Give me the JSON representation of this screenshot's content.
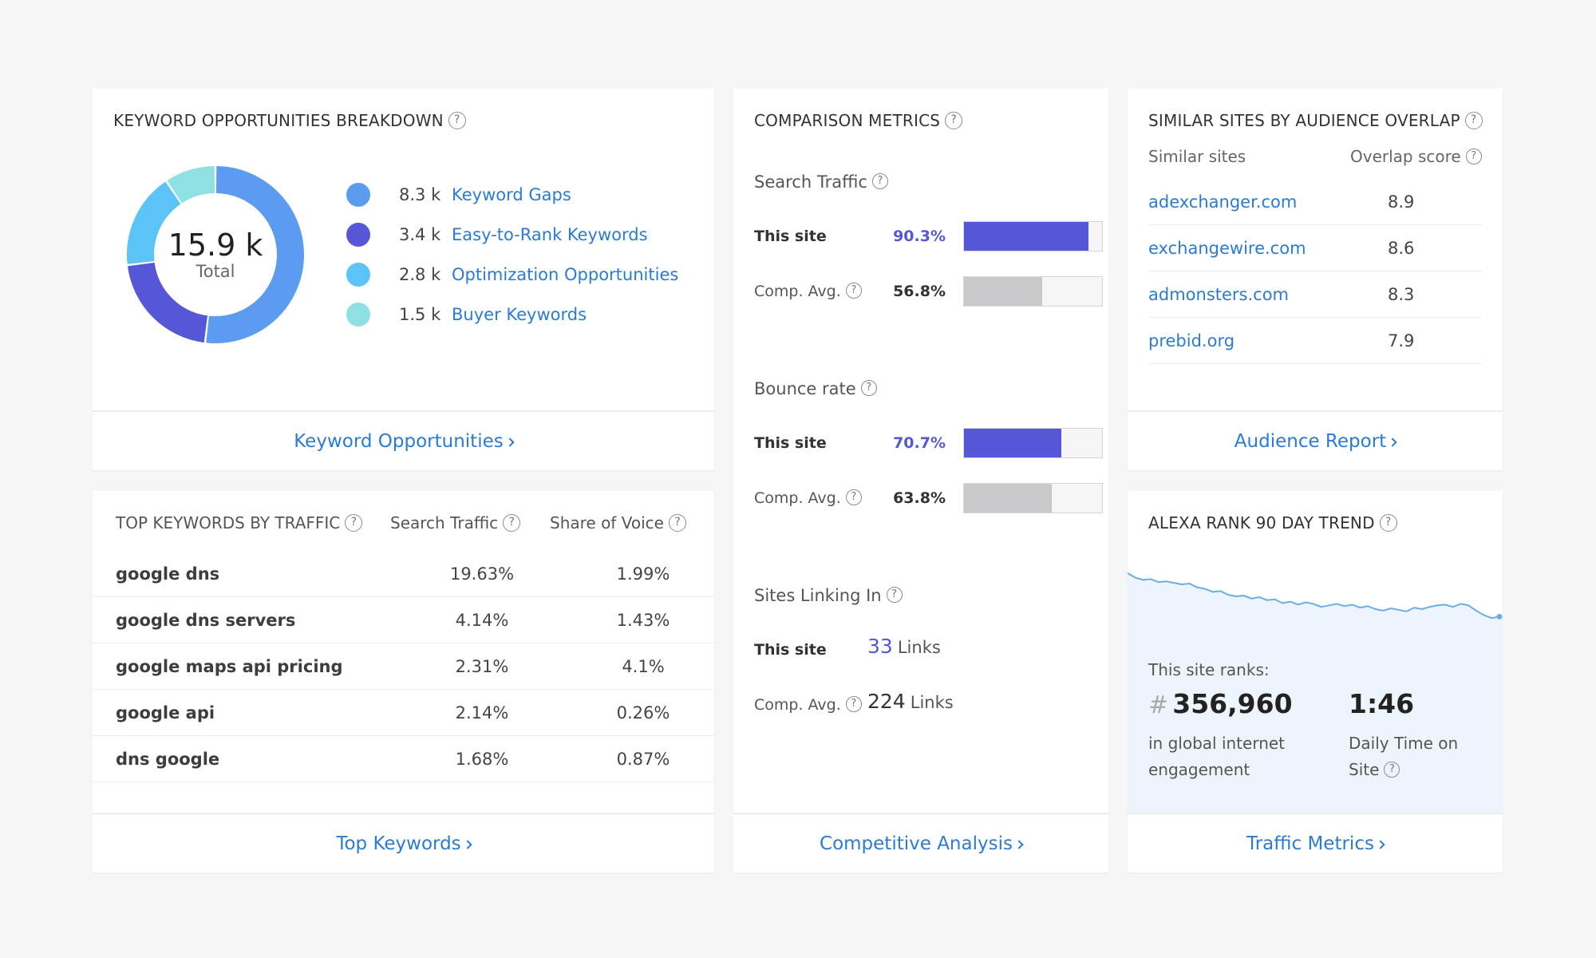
{
  "keyword_breakdown": {
    "title": "KEYWORD OPPORTUNITIES BREAKDOWN",
    "total_value": "15.9 k",
    "total_label": "Total",
    "items": [
      {
        "value": "8.3 k",
        "label": "Keyword Gaps",
        "color": "#5b9bf0",
        "amount": 8.3
      },
      {
        "value": "3.4 k",
        "label": "Easy-to-Rank Keywords",
        "color": "#5557d6",
        "amount": 3.4
      },
      {
        "value": "2.8 k",
        "label": "Optimization Opportunities",
        "color": "#5bc3f5",
        "amount": 2.8
      },
      {
        "value": "1.5 k",
        "label": "Buyer Keywords",
        "color": "#8ee0e2",
        "amount": 1.5
      }
    ],
    "footer_link": "Keyword Opportunities"
  },
  "top_keywords": {
    "title": "TOP KEYWORDS BY TRAFFIC",
    "col_search_traffic": "Search Traffic",
    "col_share_of_voice": "Share of Voice",
    "rows": [
      {
        "keyword": "google dns",
        "search_traffic": "19.63%",
        "share_of_voice": "1.99%"
      },
      {
        "keyword": "google dns servers",
        "search_traffic": "4.14%",
        "share_of_voice": "1.43%"
      },
      {
        "keyword": "google maps api pricing",
        "search_traffic": "2.31%",
        "share_of_voice": "4.1%"
      },
      {
        "keyword": "google api",
        "search_traffic": "2.14%",
        "share_of_voice": "0.26%"
      },
      {
        "keyword": "dns google",
        "search_traffic": "1.68%",
        "share_of_voice": "0.87%"
      }
    ],
    "footer_link": "Top Keywords"
  },
  "comparison_metrics": {
    "title": "COMPARISON METRICS",
    "search_traffic": {
      "label": "Search Traffic",
      "this_site_label": "This site",
      "this_site_value": "90.3%",
      "this_site_fraction": 0.903,
      "comp_label": "Comp. Avg.",
      "comp_value": "56.8%",
      "comp_fraction": 0.568
    },
    "bounce_rate": {
      "label": "Bounce rate",
      "this_site_label": "This site",
      "this_site_value": "70.7%",
      "this_site_fraction": 0.707,
      "comp_label": "Comp. Avg.",
      "comp_value": "63.8%",
      "comp_fraction": 0.638
    },
    "sites_linking_in": {
      "label": "Sites Linking In",
      "this_site_label": "This site",
      "this_site_value": "33",
      "comp_label": "Comp. Avg.",
      "comp_value": "224",
      "unit": "Links"
    },
    "colors": {
      "this_site": "#5557d6",
      "comp": "#c9c9cc",
      "this_site_text": "#5557d6"
    },
    "footer_link": "Competitive Analysis"
  },
  "similar_sites": {
    "title": "SIMILAR SITES BY AUDIENCE OVERLAP",
    "col_sites": "Similar sites",
    "col_score": "Overlap score",
    "rows": [
      {
        "site": "adexchanger.com",
        "score": "8.9"
      },
      {
        "site": "exchangewire.com",
        "score": "8.6"
      },
      {
        "site": "admonsters.com",
        "score": "8.3"
      },
      {
        "site": "prebid.org",
        "score": "7.9"
      }
    ],
    "footer_link": "Audience Report"
  },
  "alexa_rank": {
    "title": "ALEXA RANK 90 DAY TREND",
    "ranks_label": "This site ranks:",
    "hash": "#",
    "rank_value": "356,960",
    "rank_caption_1": "in global internet",
    "rank_caption_2": "engagement",
    "time_value": "1:46",
    "time_caption_1": "Daily Time on",
    "time_caption_2": "Site",
    "trend": [
      0.02,
      0.08,
      0.11,
      0.1,
      0.14,
      0.13,
      0.15,
      0.17,
      0.16,
      0.21,
      0.23,
      0.27,
      0.26,
      0.31,
      0.33,
      0.32,
      0.36,
      0.34,
      0.38,
      0.37,
      0.42,
      0.4,
      0.44,
      0.41,
      0.43,
      0.47,
      0.45,
      0.43,
      0.46,
      0.44,
      0.48,
      0.46,
      0.5,
      0.52,
      0.49,
      0.51,
      0.53,
      0.48,
      0.5,
      0.47,
      0.45,
      0.44,
      0.47,
      0.43,
      0.45,
      0.52,
      0.58,
      0.62,
      0.6
    ],
    "line_color": "#6aaee8",
    "footer_link": "Traffic Metrics"
  }
}
